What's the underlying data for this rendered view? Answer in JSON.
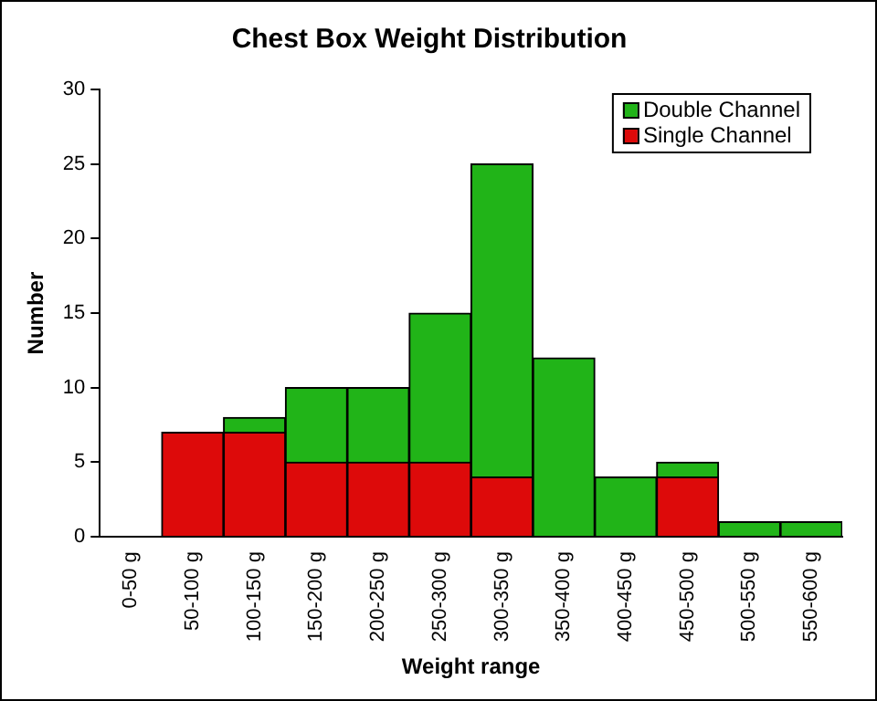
{
  "chart_data": {
    "type": "bar",
    "title": "Chest Box Weight Distribution",
    "xlabel": "Weight range",
    "ylabel": "Number",
    "categories": [
      "0-50 g",
      "50-100 g",
      "100-150 g",
      "150-200 g",
      "200-250 g",
      "250-300 g",
      "300-350 g",
      "350-400 g",
      "400-450 g",
      "450-500 g",
      "500-550 g",
      "550-600 g"
    ],
    "series": [
      {
        "name": "Single Channel",
        "color": "#dd0a0a",
        "values": [
          0,
          7,
          7,
          5,
          5,
          5,
          4,
          0,
          0,
          4,
          0,
          0
        ]
      },
      {
        "name": "Double Channel",
        "color": "#21b418",
        "values": [
          0,
          0,
          1,
          5,
          5,
          10,
          21,
          12,
          4,
          1,
          1,
          1
        ]
      }
    ],
    "stacked": true,
    "ylim": [
      0,
      30
    ],
    "yticks": [
      0,
      5,
      10,
      15,
      20,
      25,
      30
    ],
    "grid": false,
    "legend": "top right"
  }
}
